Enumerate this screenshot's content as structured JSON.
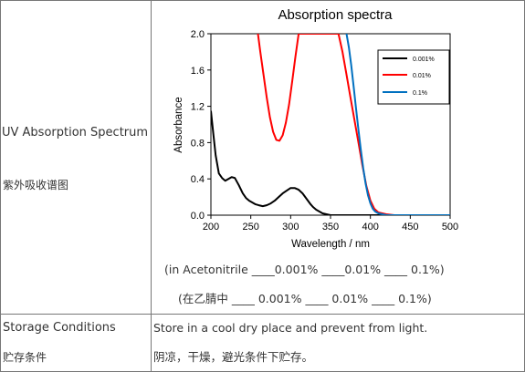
{
  "rows": {
    "uv": {
      "label_en": "UV Absorption Spectrum",
      "label_zh": "紫外吸收谱图"
    },
    "storage": {
      "label_en": "Storage Conditions",
      "label_zh": "贮存条件",
      "value_en": "Store in a cool dry place and prevent from light.",
      "value_zh": "阴凉，干燥，避光条件下贮存。"
    }
  },
  "notes": {
    "legend_en": "(in Acetonitrile ____0.001% ____0.01% ____ 0.1%)",
    "legend_zh": "(在乙腈中 ____ 0.001% ____ 0.01% ____ 0.1%)"
  },
  "chart_data": {
    "type": "line",
    "title": "Absorption spectra",
    "xlabel": "Wavelength / nm",
    "ylabel": "Absorbance",
    "xlim": [
      200,
      500
    ],
    "ylim": [
      0.0,
      2.0
    ],
    "xticks": [
      200,
      250,
      300,
      350,
      400,
      450,
      500
    ],
    "yticks": [
      0.0,
      0.4,
      0.8,
      1.2,
      1.6,
      2.0
    ],
    "ytick_labels": [
      "0.0",
      "0.4",
      "0.8",
      "1.2",
      "1.6",
      "2.0"
    ],
    "legend_position": "top-right",
    "series": [
      {
        "name": "0.001%",
        "color": "#000000",
        "x": [
          200,
          203,
          206,
          210,
          214,
          218,
          222,
          226,
          230,
          235,
          240,
          244,
          248,
          252,
          256,
          260,
          265,
          270,
          275,
          280,
          285,
          290,
          295,
          300,
          305,
          310,
          315,
          320,
          325,
          328,
          332,
          336,
          340,
          345,
          350,
          355,
          360,
          365,
          370,
          375,
          380,
          390,
          400,
          500
        ],
        "y": [
          1.15,
          0.9,
          0.66,
          0.46,
          0.41,
          0.38,
          0.4,
          0.42,
          0.41,
          0.33,
          0.24,
          0.19,
          0.16,
          0.14,
          0.12,
          0.11,
          0.1,
          0.11,
          0.13,
          0.16,
          0.2,
          0.24,
          0.27,
          0.3,
          0.3,
          0.28,
          0.24,
          0.18,
          0.12,
          0.09,
          0.06,
          0.04,
          0.02,
          0.01,
          0.0,
          0.0,
          0.0,
          0.0,
          0.0,
          0.0,
          0.0,
          0.0,
          0.0,
          0.0
        ]
      },
      {
        "name": "0.01%",
        "color": "#ff0000",
        "x": [
          259,
          262,
          266,
          270,
          274,
          278,
          282,
          286,
          290,
          294,
          298,
          302,
          306,
          310,
          315,
          320,
          325,
          330,
          335,
          340,
          345,
          350,
          355,
          360,
          365,
          370,
          375,
          380,
          385,
          390,
          395,
          400,
          405,
          410,
          420,
          430,
          440,
          450,
          500
        ],
        "y": [
          2.0,
          1.8,
          1.55,
          1.3,
          1.08,
          0.92,
          0.83,
          0.82,
          0.88,
          1.02,
          1.22,
          1.48,
          1.75,
          2.0,
          2.0,
          2.0,
          2.0,
          2.0,
          2.0,
          2.0,
          2.0,
          2.0,
          2.0,
          2.0,
          1.8,
          1.55,
          1.3,
          1.05,
          0.8,
          0.55,
          0.32,
          0.16,
          0.07,
          0.03,
          0.01,
          0.0,
          0.0,
          0.0,
          0.0
        ]
      },
      {
        "name": "0.1%",
        "color": "#0070c0",
        "x": [
          370,
          373,
          376,
          379,
          382,
          385,
          388,
          391,
          394,
          397,
          400,
          403,
          406,
          410,
          415,
          420,
          430,
          450,
          500
        ],
        "y": [
          2.0,
          1.85,
          1.65,
          1.42,
          1.18,
          0.94,
          0.72,
          0.52,
          0.35,
          0.22,
          0.13,
          0.07,
          0.04,
          0.02,
          0.01,
          0.0,
          0.0,
          0.0,
          0.0
        ]
      }
    ]
  }
}
